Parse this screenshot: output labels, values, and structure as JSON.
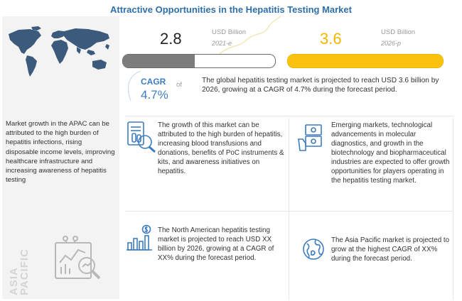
{
  "title": "Attractive Opportunities in the Hepatitis Testing Market",
  "market": {
    "value_2021": "2.8",
    "value_2021_unit": "USD Billion",
    "year_2021": "2021-e",
    "value_2026": "3.6",
    "value_2026_unit": "USD Billion",
    "year_2026": "2026-p",
    "bar_fraction_2021": 0.47,
    "bar_fraction_2026": 1.0
  },
  "cagr": {
    "label": "CAGR",
    "of": "of",
    "value": "4.7%"
  },
  "global_text": "The global hepatitis testing market is projected to reach USD 3.6 billion by 2026, growing at a CAGR of 4.7% during the forecast period.",
  "left_panel": {
    "apac_text": "Market growth in the APAC can be attributed to the high burden of hepatitis infections, rising disposable income levels, improving healthcare infrastructure and increasing awareness of hepatitis testing",
    "vertical_label": "ASIA PACIFIC"
  },
  "boxes": {
    "growth_text": "The growth of this market can be attributed to the high burden of hepatitis, increasing blood transfusions and donations, benefits of PoC instruments & kits, and awareness initiatives on hepatitis.",
    "emerging_text": "Emerging markets, technological advancements in molecular diagnostics, and growth in the biotechnology and biopharmaceutical industries are expected to offer growth opportunities for players operating in the hepatitis testing market.",
    "north_america_text": "The North American hepatitis testing market is projected to reach USD XX billion by 2026, growing at a CAGR of XX% during the forecast period.",
    "asia_pacific_text": "The Asia Pacific market is projected to grow at the highest CAGR of XX% during the forecast period."
  },
  "colors": {
    "title": "#2f6fa8",
    "accent_blue": "#3e7cc0",
    "bar_gray": "#7c7c7c",
    "bar_yellow": "#fac10f",
    "map_blue": "#3c5a7c"
  },
  "icons": [
    "world-map-icon",
    "test-tube-icon",
    "money-hand-icon",
    "bar-chart-dollar-icon",
    "globe-icon",
    "analysis-magnifier-icon"
  ]
}
